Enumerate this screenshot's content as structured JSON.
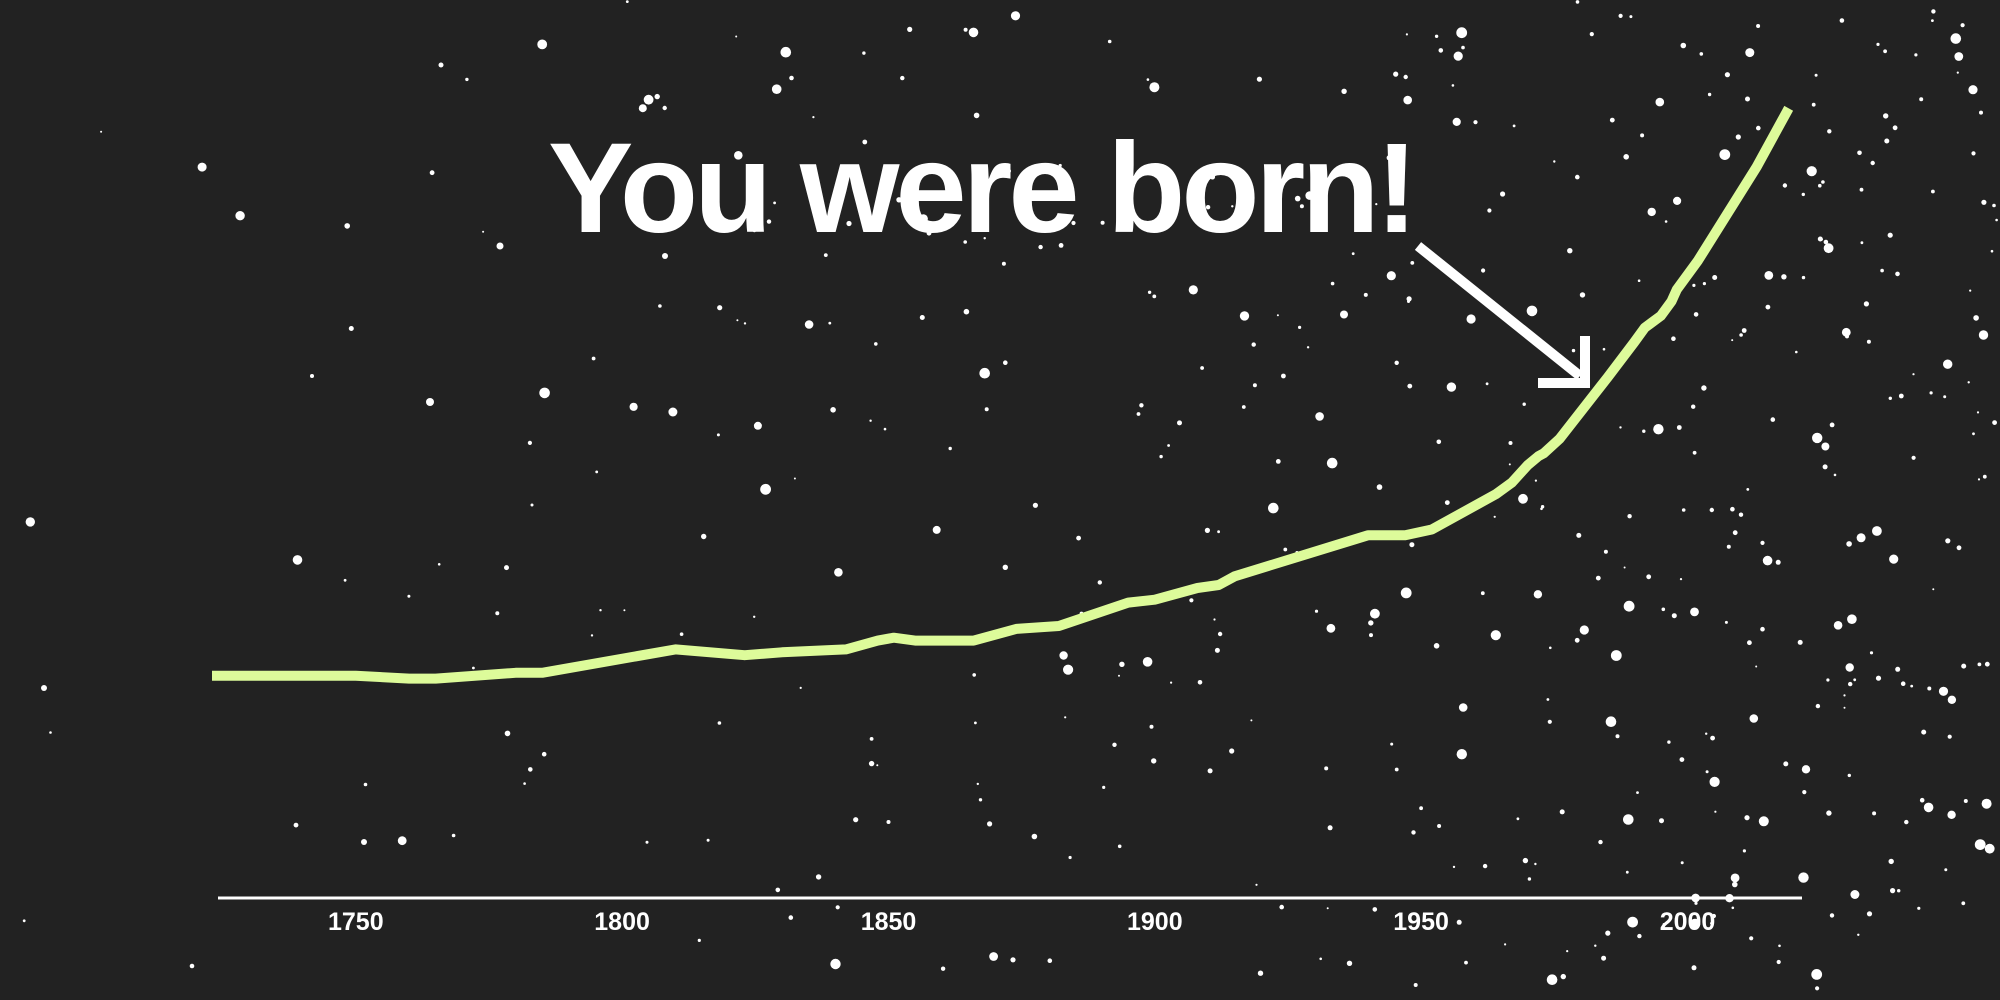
{
  "colors": {
    "background": "#222222",
    "line": "#ddfb9a",
    "axis": "#ffffff",
    "stars": "#ffffff",
    "text": "#ffffff"
  },
  "annotation": {
    "text": "You were born!",
    "year": 1982,
    "arrow_icon": "arrow-down-right-icon"
  },
  "chart_data": {
    "type": "line",
    "title": "",
    "xlabel": "",
    "ylabel": "",
    "xlim": [
      1723,
      2020
    ],
    "ylim": [
      0,
      280
    ],
    "grid": false,
    "legend": "none",
    "x_ticks": [
      1750,
      1800,
      1850,
      1900,
      1950,
      2000
    ],
    "x_tick_labels": [
      "1750",
      "1800",
      "1850",
      "1900",
      "1950",
      "2000"
    ],
    "series": [
      {
        "x": [
          1723,
          1740,
          1750,
          1760,
          1765,
          1780,
          1785,
          1810,
          1823,
          1830,
          1842,
          1848,
          1851,
          1855,
          1866,
          1874,
          1882,
          1895,
          1900,
          1908,
          1912,
          1915,
          1940,
          1947,
          1952,
          1964,
          1967,
          1970,
          1972,
          1973,
          1976,
          1985,
          1990,
          1992,
          1995,
          1997,
          1998,
          2002,
          2013,
          2019
        ],
        "y": [
          76,
          76,
          76,
          75,
          75,
          77,
          77,
          85,
          83,
          84,
          85,
          88,
          89,
          88,
          88,
          92,
          93,
          101,
          102,
          106,
          107,
          110,
          124,
          124,
          126,
          138,
          142,
          148,
          151,
          152,
          157,
          178,
          190,
          195,
          199,
          204,
          208,
          218,
          250,
          270
        ]
      }
    ]
  }
}
